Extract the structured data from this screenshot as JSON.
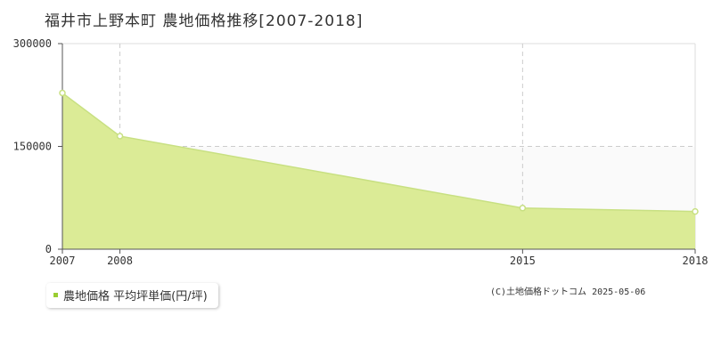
{
  "colors": {
    "area_fill": "#dbeb96",
    "line": "#c8e082",
    "marker_stroke": "#c8e082",
    "marker_fill": "#ffffff",
    "grid": "#cccccc",
    "axis": "#555555",
    "band": "#fafafa",
    "legend_marker": "#9acd32"
  },
  "chart_data": {
    "type": "area",
    "title": "福井市上野本町 農地価格推移[2007-2018]",
    "x": [
      "2007",
      "2008",
      "2015",
      "2018"
    ],
    "series": [
      {
        "name": "農地価格 平均坪単価(円/坪)",
        "values": [
          228000,
          165000,
          60000,
          55000
        ]
      }
    ],
    "y_ticks": [
      "0",
      "150000",
      "300000"
    ],
    "x_ticks": [
      "2007",
      "2008",
      "2015",
      "2018"
    ],
    "ylim": [
      0,
      300000
    ],
    "xlabel": "",
    "ylabel": "",
    "grid": true,
    "legend": "bottom-left"
  },
  "copyright": "(C)土地価格ドットコム 2025-05-06"
}
